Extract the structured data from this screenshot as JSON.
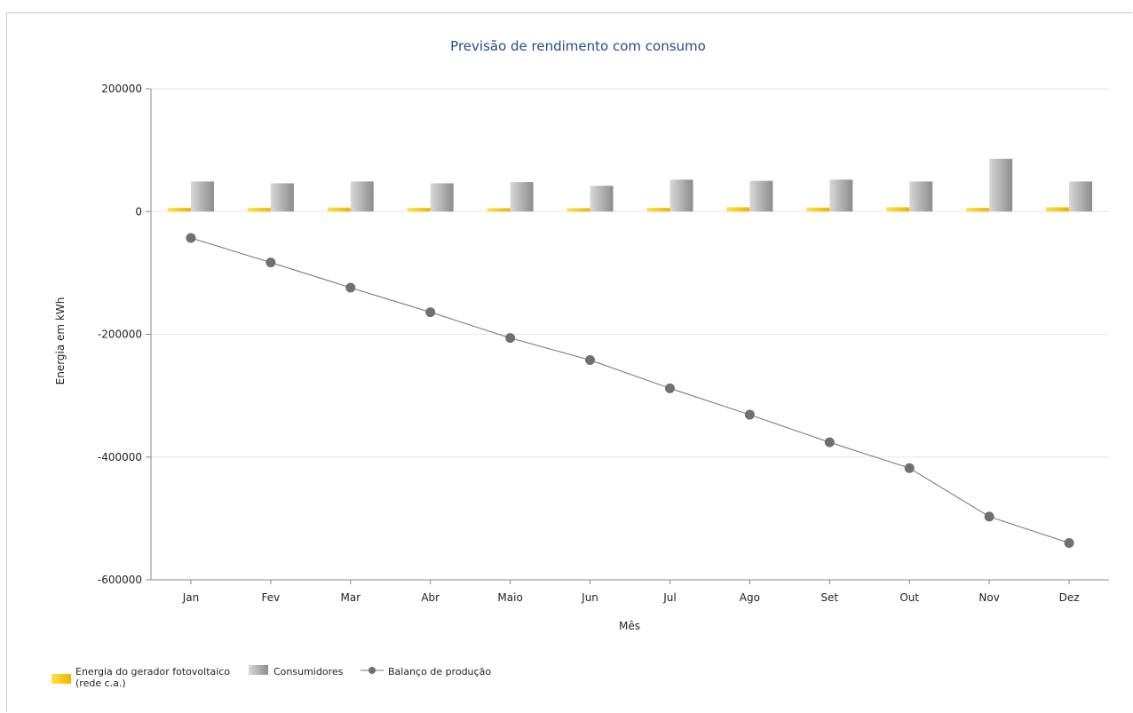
{
  "chart_data": {
    "type": "bar",
    "title": "Previsão de rendimento com consumo",
    "xlabel": "Mês",
    "ylabel": "Energia em kWh",
    "ylim": [
      -600000,
      200000
    ],
    "yticks": [
      200000,
      0,
      -200000,
      -400000,
      -600000
    ],
    "ytick_labels": [
      "200000",
      "0",
      "-200000",
      "-400000",
      "-600000"
    ],
    "grid": true,
    "legend_position": "bottom-left",
    "categories": [
      "Jan",
      "Fev",
      "Mar",
      "Abr",
      "Maio",
      "Jun",
      "Jul",
      "Ago",
      "Set",
      "Out",
      "Nov",
      "Dez"
    ],
    "series": [
      {
        "name": "Energia do gerador fotovoltaico (rede c.a.)",
        "name_lines": [
          "Energia do gerador fotovoltaico",
          "(rede c.a.)"
        ],
        "kind": "bar",
        "color": "#f5c800",
        "values": [
          6000,
          6000,
          6500,
          6000,
          5500,
          5500,
          6000,
          7000,
          6500,
          7000,
          6000,
          7000
        ]
      },
      {
        "name": "Consumidores",
        "kind": "bar",
        "color": "#a8a8a8",
        "values": [
          49000,
          46000,
          49000,
          46000,
          48000,
          42000,
          52000,
          50000,
          52000,
          49000,
          86000,
          49000
        ]
      },
      {
        "name": "Balanço de produção",
        "kind": "line",
        "color": "#707070",
        "values": [
          -43000,
          -83000,
          -124000,
          -164000,
          -206000,
          -242000,
          -288000,
          -331000,
          -376000,
          -418000,
          -497000,
          -540000
        ]
      }
    ]
  }
}
